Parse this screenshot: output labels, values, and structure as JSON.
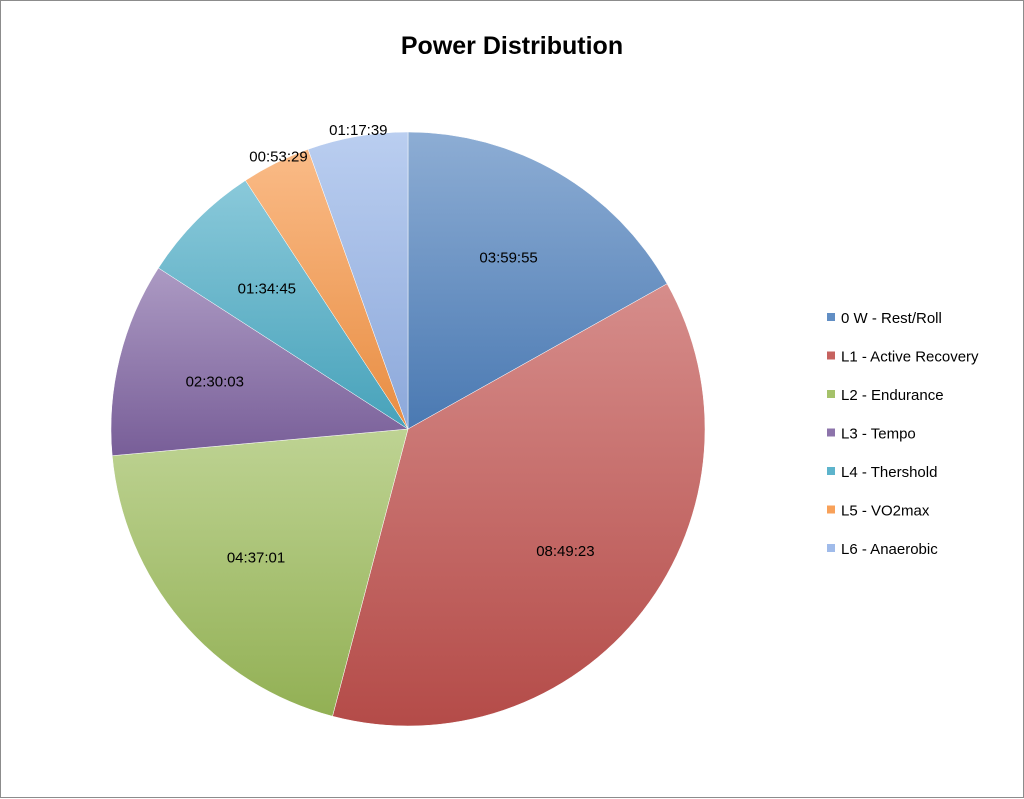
{
  "chart_data": {
    "type": "pie",
    "title": "Power Distribution",
    "start_angle_deg": 0,
    "direction": "clockwise",
    "legend_position": "right",
    "slices": [
      {
        "name": "0 W - Rest/Roll",
        "label": "03:59:55",
        "value": 14395,
        "color": "#4f81bd"
      },
      {
        "name": "L1 - Active Recovery",
        "label": "08:49:23",
        "value": 31763,
        "color": "#c0504d"
      },
      {
        "name": "L2 - Endurance",
        "label": "04:37:01",
        "value": 16621,
        "color": "#9bbb59"
      },
      {
        "name": "L3 - Tempo",
        "label": "02:30:03",
        "value": 9003,
        "color": "#8064a2"
      },
      {
        "name": "L4 - Thershold",
        "label": "01:34:45",
        "value": 5685,
        "color": "#4bacc6"
      },
      {
        "name": "L5 - VO2max",
        "label": "00:53:29",
        "value": 3209,
        "color": "#f79646"
      },
      {
        "name": "L6 - Anaerobic",
        "label": "01:17:39",
        "value": 4659,
        "color": "#95b3e8"
      }
    ]
  }
}
